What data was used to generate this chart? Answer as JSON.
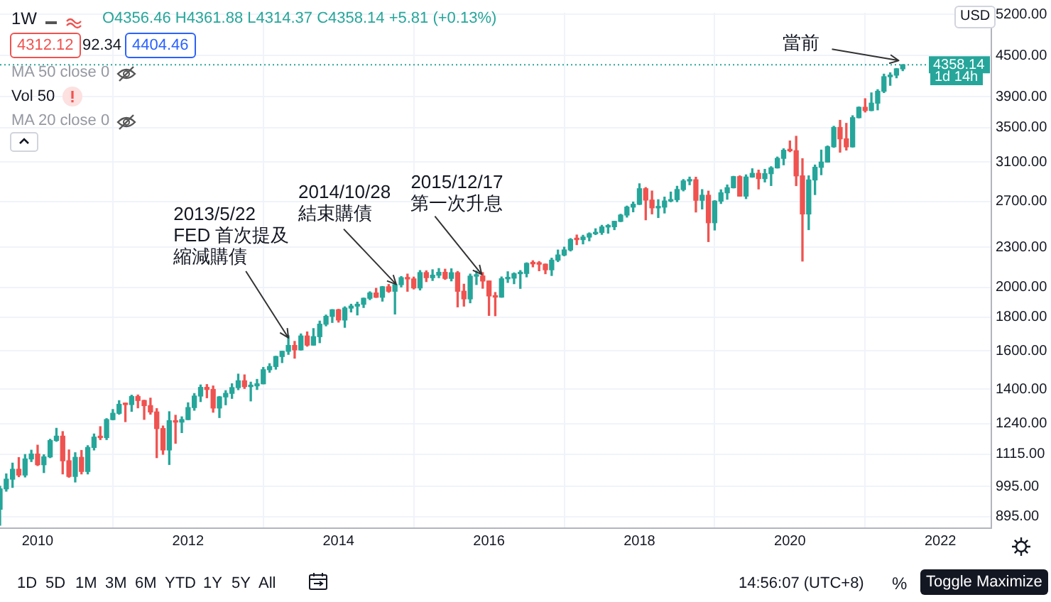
{
  "chart_data": {
    "type": "candlestick",
    "x": [
      "2009-07",
      "2009-08",
      "2009-09",
      "2009-10",
      "2009-11",
      "2009-12",
      "2010-01",
      "2010-02",
      "2010-03",
      "2010-04",
      "2010-05",
      "2010-06",
      "2010-07",
      "2010-08",
      "2010-09",
      "2010-10",
      "2010-11",
      "2010-12",
      "2011-01",
      "2011-02",
      "2011-03",
      "2011-04",
      "2011-05",
      "2011-06",
      "2011-07",
      "2011-08",
      "2011-09",
      "2011-10",
      "2011-11",
      "2011-12",
      "2012-01",
      "2012-02",
      "2012-03",
      "2012-04",
      "2012-05",
      "2012-06",
      "2012-07",
      "2012-08",
      "2012-09",
      "2012-10",
      "2012-11",
      "2012-12",
      "2013-01",
      "2013-02",
      "2013-03",
      "2013-04",
      "2013-05",
      "2013-06",
      "2013-07",
      "2013-08",
      "2013-09",
      "2013-10",
      "2013-11",
      "2013-12",
      "2014-01",
      "2014-02",
      "2014-03",
      "2014-04",
      "2014-05",
      "2014-06",
      "2014-07",
      "2014-08",
      "2014-09",
      "2014-10",
      "2014-11",
      "2014-12",
      "2015-01",
      "2015-02",
      "2015-03",
      "2015-04",
      "2015-05",
      "2015-06",
      "2015-07",
      "2015-08",
      "2015-09",
      "2015-10",
      "2015-11",
      "2015-12",
      "2016-01",
      "2016-02",
      "2016-03",
      "2016-04",
      "2016-05",
      "2016-06",
      "2016-07",
      "2016-08",
      "2016-09",
      "2016-10",
      "2016-11",
      "2016-12",
      "2017-01",
      "2017-02",
      "2017-03",
      "2017-04",
      "2017-05",
      "2017-06",
      "2017-07",
      "2017-08",
      "2017-09",
      "2017-10",
      "2017-11",
      "2017-12",
      "2018-01",
      "2018-02",
      "2018-03",
      "2018-04",
      "2018-05",
      "2018-06",
      "2018-07",
      "2018-08",
      "2018-09",
      "2018-10",
      "2018-11",
      "2018-12",
      "2019-01",
      "2019-02",
      "2019-03",
      "2019-04",
      "2019-05",
      "2019-06",
      "2019-07",
      "2019-08",
      "2019-09",
      "2019-10",
      "2019-11",
      "2019-12",
      "2020-01",
      "2020-02",
      "2020-03",
      "2020-04",
      "2020-05",
      "2020-06",
      "2020-07",
      "2020-08",
      "2020-09",
      "2020-10",
      "2020-11",
      "2020-12",
      "2021-01",
      "2021-02",
      "2021-03",
      "2021-04",
      "2021-05",
      "2021-06",
      "2021-07"
    ],
    "ohlc": [
      [
        919,
        996,
        869,
        987
      ],
      [
        987,
        1040,
        979,
        1021
      ],
      [
        1021,
        1080,
        992,
        1057
      ],
      [
        1057,
        1101,
        1030,
        1036
      ],
      [
        1036,
        1113,
        1029,
        1096
      ],
      [
        1096,
        1130,
        1086,
        1115
      ],
      [
        1115,
        1150,
        1071,
        1074
      ],
      [
        1074,
        1112,
        1045,
        1104
      ],
      [
        1104,
        1174,
        1101,
        1169
      ],
      [
        1169,
        1220,
        1166,
        1187
      ],
      [
        1187,
        1206,
        1040,
        1089
      ],
      [
        1089,
        1131,
        1028,
        1031
      ],
      [
        1031,
        1120,
        1011,
        1102
      ],
      [
        1102,
        1129,
        1040,
        1049
      ],
      [
        1049,
        1148,
        1040,
        1141
      ],
      [
        1141,
        1196,
        1131,
        1183
      ],
      [
        1183,
        1227,
        1173,
        1181
      ],
      [
        1181,
        1262,
        1173,
        1258
      ],
      [
        1258,
        1303,
        1257,
        1286
      ],
      [
        1286,
        1344,
        1282,
        1327
      ],
      [
        1327,
        1333,
        1249,
        1326
      ],
      [
        1326,
        1370,
        1295,
        1364
      ],
      [
        1364,
        1371,
        1311,
        1345
      ],
      [
        1345,
        1346,
        1259,
        1321
      ],
      [
        1321,
        1356,
        1282,
        1292
      ],
      [
        1292,
        1307,
        1101,
        1219
      ],
      [
        1219,
        1230,
        1114,
        1131
      ],
      [
        1131,
        1293,
        1075,
        1253
      ],
      [
        1253,
        1277,
        1158,
        1247
      ],
      [
        1247,
        1270,
        1202,
        1258
      ],
      [
        1258,
        1334,
        1258,
        1312
      ],
      [
        1312,
        1378,
        1300,
        1366
      ],
      [
        1366,
        1420,
        1340,
        1408
      ],
      [
        1408,
        1422,
        1358,
        1398
      ],
      [
        1398,
        1415,
        1291,
        1310
      ],
      [
        1310,
        1364,
        1267,
        1362
      ],
      [
        1362,
        1392,
        1325,
        1379
      ],
      [
        1379,
        1426,
        1355,
        1407
      ],
      [
        1407,
        1475,
        1397,
        1441
      ],
      [
        1441,
        1471,
        1403,
        1412
      ],
      [
        1412,
        1434,
        1343,
        1416
      ],
      [
        1416,
        1448,
        1398,
        1426
      ],
      [
        1426,
        1510,
        1426,
        1498
      ],
      [
        1498,
        1530,
        1485,
        1515
      ],
      [
        1515,
        1570,
        1501,
        1569
      ],
      [
        1569,
        1598,
        1536,
        1598
      ],
      [
        1598,
        1687,
        1581,
        1631
      ],
      [
        1631,
        1654,
        1560,
        1606
      ],
      [
        1606,
        1698,
        1605,
        1686
      ],
      [
        1686,
        1710,
        1627,
        1633
      ],
      [
        1633,
        1730,
        1633,
        1682
      ],
      [
        1682,
        1776,
        1647,
        1757
      ],
      [
        1757,
        1814,
        1747,
        1806
      ],
      [
        1806,
        1849,
        1768,
        1848
      ],
      [
        1848,
        1851,
        1770,
        1783
      ],
      [
        1783,
        1867,
        1738,
        1859
      ],
      [
        1859,
        1884,
        1834,
        1872
      ],
      [
        1872,
        1898,
        1815,
        1884
      ],
      [
        1884,
        1925,
        1863,
        1924
      ],
      [
        1924,
        1968,
        1915,
        1960
      ],
      [
        1960,
        1992,
        1930,
        1931
      ],
      [
        1931,
        2005,
        1905,
        2003
      ],
      [
        2003,
        2019,
        1965,
        1972
      ],
      [
        1972,
        2019,
        1821,
        2018
      ],
      [
        2018,
        2076,
        2002,
        2068
      ],
      [
        2068,
        2094,
        1972,
        2059
      ],
      [
        2059,
        2072,
        1988,
        1995
      ],
      [
        1995,
        2120,
        1981,
        2105
      ],
      [
        2105,
        2118,
        2040,
        2068
      ],
      [
        2068,
        2126,
        2048,
        2086
      ],
      [
        2086,
        2135,
        2068,
        2107
      ],
      [
        2107,
        2130,
        2056,
        2063
      ],
      [
        2063,
        2133,
        2045,
        2104
      ],
      [
        2104,
        2113,
        1867,
        1972
      ],
      [
        1972,
        2021,
        1872,
        1920
      ],
      [
        1920,
        2094,
        1894,
        2079
      ],
      [
        2079,
        2116,
        2019,
        2080
      ],
      [
        2080,
        2105,
        1993,
        2044
      ],
      [
        2044,
        2044,
        1812,
        1940
      ],
      [
        1940,
        1963,
        1810,
        1932
      ],
      [
        1932,
        2073,
        1931,
        2060
      ],
      [
        2060,
        2111,
        2034,
        2065
      ],
      [
        2065,
        2103,
        2025,
        2097
      ],
      [
        2097,
        2120,
        1992,
        2099
      ],
      [
        2099,
        2178,
        2074,
        2174
      ],
      [
        2174,
        2194,
        2148,
        2171
      ],
      [
        2171,
        2188,
        2119,
        2168
      ],
      [
        2168,
        2169,
        2097,
        2126
      ],
      [
        2126,
        2214,
        2084,
        2199
      ],
      [
        2199,
        2278,
        2188,
        2239
      ],
      [
        2239,
        2301,
        2233,
        2279
      ],
      [
        2279,
        2371,
        2271,
        2364
      ],
      [
        2364,
        2401,
        2322,
        2363
      ],
      [
        2363,
        2399,
        2328,
        2384
      ],
      [
        2384,
        2419,
        2353,
        2412
      ],
      [
        2412,
        2454,
        2405,
        2423
      ],
      [
        2423,
        2484,
        2407,
        2470
      ],
      [
        2470,
        2491,
        2417,
        2472
      ],
      [
        2472,
        2519,
        2447,
        2519
      ],
      [
        2519,
        2582,
        2517,
        2575
      ],
      [
        2575,
        2657,
        2557,
        2648
      ],
      [
        2648,
        2695,
        2605,
        2674
      ],
      [
        2674,
        2873,
        2672,
        2824
      ],
      [
        2824,
        2835,
        2533,
        2714
      ],
      [
        2714,
        2801,
        2586,
        2641
      ],
      [
        2641,
        2717,
        2553,
        2648
      ],
      [
        2648,
        2742,
        2594,
        2705
      ],
      [
        2705,
        2791,
        2698,
        2718
      ],
      [
        2718,
        2848,
        2699,
        2816
      ],
      [
        2816,
        2916,
        2803,
        2902
      ],
      [
        2902,
        2941,
        2864,
        2914
      ],
      [
        2914,
        2940,
        2603,
        2712
      ],
      [
        2712,
        2815,
        2631,
        2760
      ],
      [
        2760,
        2800,
        2347,
        2507
      ],
      [
        2507,
        2708,
        2444,
        2704
      ],
      [
        2704,
        2813,
        2682,
        2784
      ],
      [
        2784,
        2861,
        2722,
        2834
      ],
      [
        2834,
        2949,
        2832,
        2946
      ],
      [
        2946,
        2954,
        2751,
        2752
      ],
      [
        2752,
        2964,
        2728,
        2942
      ],
      [
        2942,
        3028,
        2940,
        2980
      ],
      [
        2980,
        3014,
        2822,
        2926
      ],
      [
        2926,
        3022,
        2892,
        2977
      ],
      [
        2977,
        3050,
        2856,
        3038
      ],
      [
        3038,
        3155,
        3036,
        3141
      ],
      [
        3141,
        3248,
        3071,
        3231
      ],
      [
        3231,
        3338,
        3215,
        3226
      ],
      [
        3226,
        3393,
        2855,
        2954
      ],
      [
        2954,
        3137,
        2192,
        2585
      ],
      [
        2585,
        2954,
        2447,
        2912
      ],
      [
        2912,
        3068,
        2767,
        3044
      ],
      [
        3044,
        3233,
        2966,
        3100
      ],
      [
        3100,
        3280,
        3099,
        3271
      ],
      [
        3271,
        3514,
        3265,
        3500
      ],
      [
        3500,
        3588,
        3210,
        3363
      ],
      [
        3363,
        3550,
        3234,
        3270
      ],
      [
        3270,
        3646,
        3268,
        3622
      ],
      [
        3622,
        3760,
        3620,
        3756
      ],
      [
        3756,
        3870,
        3695,
        3714
      ],
      [
        3714,
        3950,
        3712,
        3811
      ],
      [
        3811,
        3995,
        3723,
        3973
      ],
      [
        3973,
        4218,
        3955,
        4181
      ],
      [
        4181,
        4238,
        4057,
        4204
      ],
      [
        4204,
        4302,
        4165,
        4298
      ],
      [
        4298,
        4361.88,
        4270,
        4358.14
      ]
    ],
    "colors": [
      "#26a69a",
      "#26a69a",
      "#26a69a",
      "#ef5350",
      "#26a69a",
      "#26a69a",
      "#ef5350",
      "#26a69a",
      "#26a69a",
      "#26a69a",
      "#ef5350",
      "#ef5350",
      "#26a69a",
      "#ef5350",
      "#26a69a",
      "#26a69a",
      "#ef5350",
      "#26a69a",
      "#26a69a",
      "#26a69a",
      "#ef5350",
      "#26a69a",
      "#ef5350",
      "#ef5350",
      "#ef5350",
      "#ef5350",
      "#ef5350",
      "#26a69a",
      "#ef5350",
      "#26a69a",
      "#26a69a",
      "#26a69a",
      "#26a69a",
      "#ef5350",
      "#ef5350",
      "#26a69a",
      "#26a69a",
      "#26a69a",
      "#26a69a",
      "#ef5350",
      "#26a69a",
      "#26a69a",
      "#26a69a",
      "#26a69a",
      "#26a69a",
      "#26a69a",
      "#26a69a",
      "#ef5350",
      "#26a69a",
      "#ef5350",
      "#26a69a",
      "#26a69a",
      "#26a69a",
      "#26a69a",
      "#ef5350",
      "#26a69a",
      "#26a69a",
      "#26a69a",
      "#26a69a",
      "#26a69a",
      "#ef5350",
      "#26a69a",
      "#ef5350",
      "#26a69a",
      "#26a69a",
      "#ef5350",
      "#ef5350",
      "#26a69a",
      "#ef5350",
      "#26a69a",
      "#26a69a",
      "#ef5350",
      "#26a69a",
      "#ef5350",
      "#ef5350",
      "#26a69a",
      "#26a69a",
      "#ef5350",
      "#ef5350",
      "#ef5350",
      "#26a69a",
      "#26a69a",
      "#26a69a",
      "#26a69a",
      "#26a69a",
      "#ef5350",
      "#ef5350",
      "#ef5350",
      "#26a69a",
      "#26a69a",
      "#26a69a",
      "#26a69a",
      "#ef5350",
      "#26a69a",
      "#26a69a",
      "#26a69a",
      "#26a69a",
      "#26a69a",
      "#26a69a",
      "#26a69a",
      "#26a69a",
      "#26a69a",
      "#26a69a",
      "#ef5350",
      "#ef5350",
      "#26a69a",
      "#26a69a",
      "#26a69a",
      "#26a69a",
      "#26a69a",
      "#26a69a",
      "#ef5350",
      "#26a69a",
      "#ef5350",
      "#26a69a",
      "#26a69a",
      "#26a69a",
      "#26a69a",
      "#ef5350",
      "#26a69a",
      "#26a69a",
      "#ef5350",
      "#26a69a",
      "#26a69a",
      "#26a69a",
      "#26a69a",
      "#ef5350",
      "#ef5350",
      "#ef5350",
      "#26a69a",
      "#26a69a",
      "#26a69a",
      "#26a69a",
      "#26a69a",
      "#ef5350",
      "#ef5350",
      "#26a69a",
      "#26a69a",
      "#ef5350",
      "#26a69a",
      "#26a69a",
      "#26a69a",
      "#26a69a",
      "#26a69a",
      "#26a69a"
    ],
    "xlim": [
      "2009-07-01",
      "2022-09-05"
    ],
    "xticks": [
      "2010",
      "2012",
      "2014",
      "2016",
      "2018",
      "2020",
      "2022"
    ],
    "ylim": [
      860,
      5230
    ],
    "yticks": [
      {
        "value": 895,
        "label": "895.00"
      },
      {
        "value": 995,
        "label": "995.00"
      },
      {
        "value": 1115,
        "label": "1115.00"
      },
      {
        "value": 1240,
        "label": "1240.00"
      },
      {
        "value": 1400,
        "label": "1400.00"
      },
      {
        "value": 1600,
        "label": "1600.00"
      },
      {
        "value": 1800,
        "label": "1800.00"
      },
      {
        "value": 2000,
        "label": "2000.00"
      },
      {
        "value": 2300,
        "label": "2300.00"
      },
      {
        "value": 2700,
        "label": "2700.00"
      },
      {
        "value": 3100,
        "label": "3100.00"
      },
      {
        "value": 3500,
        "label": "3500.00"
      },
      {
        "value": 3900,
        "label": "3900.00"
      },
      {
        "value": 4500,
        "label": "4500.00"
      },
      {
        "value": 5200,
        "label": "5200.00"
      }
    ],
    "log": "y",
    "grid": true,
    "legend": false,
    "ref_lines": [
      {
        "axis": "y",
        "value": 4358.14,
        "label": "4358.14",
        "color": "#26a69a",
        "line_style": "dotted"
      }
    ],
    "annotations": [
      {
        "text": "2013/5/22\nFED 首次提及縮減購債",
        "x": "2013-05-22",
        "y": 1650
      },
      {
        "text": "2014/10/28\n結束購債",
        "x": "2014-10-28",
        "y": 1990
      },
      {
        "text": "2015/12/17\n第一次升息",
        "x": "2015-12-17",
        "y": 2060
      },
      {
        "text": "當前",
        "x": "2021-07-02",
        "y": 4358.14
      },
      "1W",
      "O4356.46 H4361.88 L4314.37 C4358.14 +5.81 (+0.13%)",
      "4312.12",
      "92.34",
      "4404.46",
      "MA 50 close 0",
      "Vol 50",
      "MA 20 close 0",
      "USD",
      "1d 14h",
      "1D",
      "5D",
      "1M",
      "3M",
      "6M",
      "YTD",
      "1Y",
      "5Y",
      "All",
      "14:56:07 (UTC+8)",
      "%",
      "Toggle Maximize"
    ]
  }
}
